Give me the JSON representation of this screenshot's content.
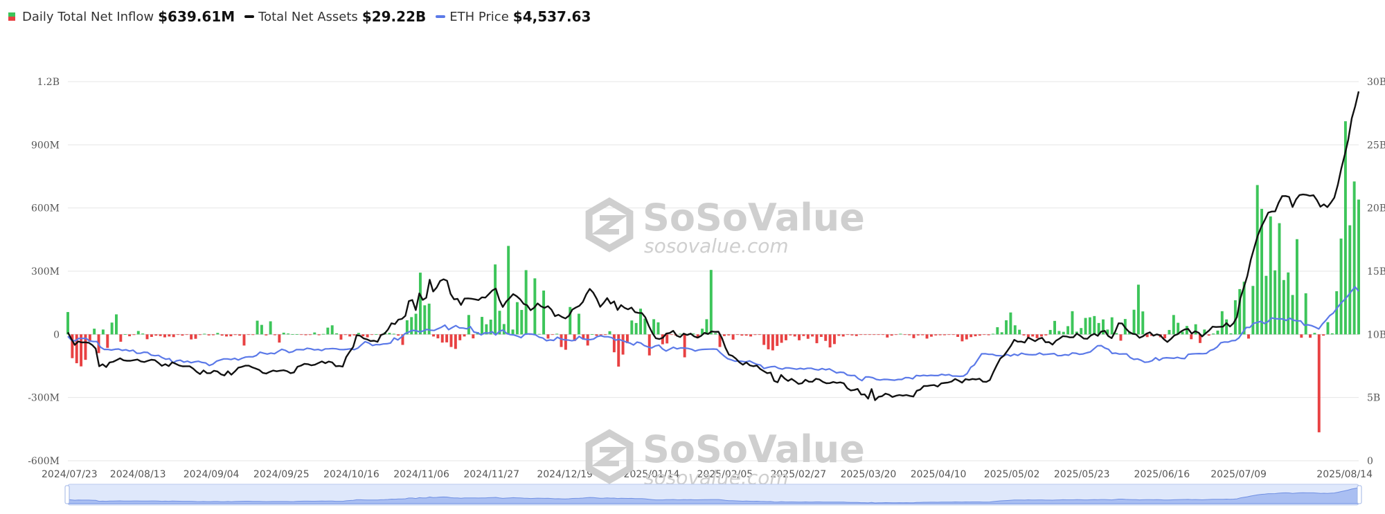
{
  "legend": {
    "inflow": {
      "label": "Daily Total Net Inflow",
      "value": "$639.61M",
      "color_pos": "#3dc55a",
      "color_neg": "#e84142"
    },
    "assets": {
      "label": "Total Net Assets",
      "value": "$29.22B",
      "color": "#111111"
    },
    "eth": {
      "label": "ETH Price",
      "value": "$4,537.63",
      "color": "#5b79e8"
    }
  },
  "watermark": {
    "brand": "SoSoValue",
    "site": "sosovalue.com"
  },
  "chart_data": {
    "type": "bar+line",
    "x_start": "2024/07/23",
    "x_end": "2025/08/14",
    "x_ticks": [
      "2024/07/23",
      "2024/08/13",
      "2024/09/04",
      "2024/09/25",
      "2024/10/16",
      "2024/11/06",
      "2024/11/27",
      "2024/12/19",
      "2025/01/14",
      "2025/02/05",
      "2025/02/27",
      "2025/03/20",
      "2025/04/10",
      "2025/05/02",
      "2025/05/23",
      "2025/06/16",
      "2025/07/09",
      "2025/08/14"
    ],
    "y_left_ticks": [
      "1.2B",
      "900M",
      "600M",
      "300M",
      "0",
      "-300M",
      "-600M"
    ],
    "y_left_range": [
      -600,
      1200
    ],
    "y_left_unit": "M",
    "y_right_ticks": [
      "30B",
      "25B",
      "20B",
      "15B",
      "10B",
      "5B",
      "0"
    ],
    "y_right_range": [
      0,
      30
    ],
    "y_right_unit": "B",
    "inflow_series": {
      "name": "Daily Total Net Inflow",
      "values": [
        106,
        -113,
        -137,
        -152,
        -121,
        -35,
        27,
        -89,
        23,
        -64,
        56,
        95,
        -35,
        1,
        -9,
        -3,
        16,
        4,
        -23,
        -12,
        -6,
        -8,
        -14,
        -10,
        -13,
        -2,
        -6,
        -2,
        -24,
        -21,
        -3,
        3,
        -5,
        -4,
        7,
        -6,
        -10,
        -9,
        -3,
        -6,
        -53,
        -1,
        -3,
        65,
        45,
        -5,
        62,
        -4,
        -39,
        8,
        4,
        1,
        1,
        -1,
        -4,
        -3,
        9,
        -4,
        2,
        32,
        43,
        5,
        -25,
        -3,
        -10,
        -5,
        7,
        -9,
        -14,
        -2,
        1,
        -5,
        10,
        7,
        3,
        -6,
        -50,
        67,
        82,
        98,
        293,
        138,
        146,
        -10,
        -19,
        -39,
        -38,
        -60,
        -69,
        -28,
        -10,
        92,
        -19,
        11,
        83,
        48,
        70,
        332,
        112,
        49,
        420,
        23,
        153,
        116,
        305,
        -2,
        266,
        2,
        208,
        -20,
        -1,
        3,
        -60,
        -73,
        130,
        -32,
        98,
        -24,
        -53,
        1,
        -7,
        -4,
        -3,
        15,
        -85,
        -153,
        -96,
        -42,
        66,
        54,
        122,
        75,
        -100,
        72,
        57,
        -47,
        -43,
        -1,
        -6,
        3,
        -109,
        4,
        4,
        -18,
        27,
        72,
        306,
        6,
        -60,
        -8,
        -5,
        -25,
        -2,
        -6,
        -6,
        -10,
        -3,
        -2,
        -50,
        -71,
        -76,
        -55,
        -40,
        -28,
        -5,
        -10,
        -28,
        -8,
        -21,
        -10,
        -42,
        -12,
        -31,
        -62,
        -46,
        -7,
        -10,
        -2,
        -5,
        -8,
        -2,
        -1,
        -1,
        -1,
        -2,
        -1,
        -15,
        -6,
        -2,
        3,
        -2,
        -4,
        -18,
        -5,
        -4,
        -20,
        -11,
        -5,
        -4,
        -4,
        -2,
        -1,
        -12,
        -33,
        -24,
        -13,
        -9,
        -6,
        -2,
        -4,
        3,
        34,
        10,
        67,
        104,
        43,
        22,
        -5,
        -14,
        -10,
        -18,
        -10,
        -5,
        21,
        64,
        16,
        12,
        39,
        110,
        13,
        30,
        78,
        81,
        87,
        54,
        71,
        23,
        81,
        6,
        -30,
        73,
        12,
        117,
        236,
        109,
        -13,
        -7,
        1,
        -14,
        -19,
        21,
        92,
        55,
        12,
        40,
        -23,
        48,
        -41,
        23,
        -6,
        4,
        18,
        110,
        71,
        5,
        162,
        215,
        250,
        -20,
        230,
        709,
        596,
        278,
        560,
        304,
        528,
        258,
        294,
        187,
        452,
        -16,
        195,
        -16,
        7,
        -465,
        -6,
        58,
        5,
        205,
        455,
        1012,
        518,
        726,
        640
      ]
    },
    "assets_series": {
      "name": "Total Net Assets",
      "values": [
        10.16,
        9.64,
        9.17,
        9.44,
        9.36,
        9.37,
        9.34,
        9.16,
        8.87,
        7.48,
        7.63,
        7.41,
        7.78,
        7.83,
        7.96,
        8.11,
        7.95,
        7.91,
        7.91,
        7.96,
        8.01,
        7.86,
        7.81,
        7.91,
        7.99,
        7.96,
        7.75,
        7.51,
        7.64,
        7.49,
        7.79,
        7.67,
        7.54,
        7.47,
        7.48,
        7.48,
        7.29,
        7.04,
        6.86,
        7.15,
        6.93,
        6.93,
        7.12,
        7.07,
        6.84,
        6.75,
        7.08,
        6.81,
        7.07,
        7.37,
        7.43,
        7.52,
        7.52,
        7.39,
        7.3,
        7.19,
        6.96,
        6.9,
        7.03,
        7.14,
        7.08,
        7.13,
        7.16,
        7.09,
        6.93,
        6.99,
        7.44,
        7.53,
        7.67,
        7.64,
        7.55,
        7.6,
        7.73,
        7.86,
        7.72,
        7.85,
        7.78,
        7.48,
        7.5,
        7.45,
        8.2,
        8.63,
        9.0,
        9.94,
        9.89,
        9.68,
        9.6,
        9.47,
        9.5,
        9.41,
        9.95,
        10.05,
        10.38,
        10.88,
        10.81,
        11.17,
        11.22,
        11.47,
        12.63,
        12.72,
        11.92,
        13.24,
        12.73,
        12.9,
        14.32,
        13.39,
        13.71,
        14.23,
        14.36,
        14.24,
        13.2,
        12.77,
        12.81,
        12.33,
        12.83,
        12.85,
        12.82,
        12.77,
        12.71,
        12.93,
        12.91,
        13.19,
        13.48,
        13.62,
        12.75,
        12.17,
        12.6,
        12.88,
        13.19,
        13.02,
        12.77,
        12.41,
        12.3,
        11.91,
        12.11,
        12.45,
        12.22,
        12.1,
        12.23,
        11.95,
        11.44,
        11.55,
        11.38,
        11.26,
        11.47,
        11.96,
        12.12,
        12.26,
        12.56,
        13.17,
        13.6,
        13.3,
        12.81,
        12.18,
        12.49,
        12.87,
        12.43,
        12.61,
        11.93,
        12.32,
        12.1,
        11.98,
        12.12,
        11.76,
        11.7,
        11.68,
        11.34,
        10.65,
        10.1,
        9.69,
        9.63,
        9.73,
        10.06,
        10.11,
        10.28,
        9.9,
        9.79,
        10.06,
        9.95,
        10.06,
        9.84,
        9.74,
        9.88,
        10.12,
        10.03,
        10.23,
        10.2,
        10.21,
        9.7,
        8.94,
        8.39,
        8.3,
        8.08,
        7.79,
        7.6,
        7.78,
        7.55,
        7.48,
        7.54,
        7.26,
        7.09,
        6.93,
        6.98,
        6.32,
        6.21,
        6.79,
        6.51,
        6.31,
        6.48,
        6.29,
        6.08,
        6.13,
        6.41,
        6.25,
        6.25,
        6.48,
        6.43,
        6.24,
        6.13,
        6.14,
        6.23,
        6.16,
        6.2,
        6.13,
        5.74,
        5.56,
        5.6,
        5.68,
        5.24,
        5.25,
        4.91,
        5.67,
        4.79,
        5.06,
        5.11,
        5.31,
        5.23,
        5.04,
        5.14,
        5.2,
        5.15,
        5.2,
        5.13,
        5.08,
        5.54,
        5.63,
        5.91,
        5.92,
        5.96,
        5.99,
        5.87,
        6.12,
        6.16,
        6.19,
        6.27,
        6.47,
        6.34,
        6.18,
        6.46,
        6.4,
        6.47,
        6.43,
        6.49,
        6.26,
        6.24,
        6.39,
        7.02,
        7.57,
        8.09,
        8.31,
        8.68,
        9.08,
        9.57,
        9.42,
        9.43,
        9.35,
        9.75,
        9.6,
        9.46,
        9.64,
        9.73,
        9.38,
        9.39,
        9.19,
        9.5,
        9.66,
        9.86,
        9.83,
        9.76,
        9.77,
        10.06,
        9.88,
        9.67,
        9.65,
        9.91,
        10.04,
        9.88,
        10.22,
        10.28,
        9.87,
        9.7,
        10.21,
        10.88,
        10.86,
        10.49,
        10.2,
        10.05,
        10.0,
        9.73,
        9.85,
        10.05,
        10.16,
        9.9,
        10.0,
        9.92,
        9.62,
        9.4,
        9.63,
        9.91,
        10.02,
        10.24,
        10.39,
        10.43,
        10.06,
        10.25,
        10.13,
        9.84,
        10.08,
        10.31,
        10.61,
        10.58,
        10.6,
        10.61,
        10.89,
        10.62,
        10.87,
        11.37,
        12.87,
        13.73,
        14.62,
        15.91,
        16.88,
        17.82,
        18.51,
        19.04,
        19.63,
        19.72,
        19.73,
        20.42,
        20.94,
        20.95,
        20.88,
        20.08,
        20.68,
        21.03,
        21.07,
        21.04,
        20.96,
        21.01,
        20.62,
        20.1,
        20.29,
        20.07,
        20.42,
        20.82,
        21.84,
        23.13,
        24.21,
        25.4,
        27.1,
        28.06,
        29.22
      ]
    },
    "eth_series": {
      "name": "ETH Price",
      "values": [
        9.85,
        9.54,
        9.48,
        9.68,
        9.68,
        9.69,
        9.47,
        9.44,
        9.43,
        8.99,
        8.81,
        8.81,
        8.76,
        8.82,
        8.84,
        8.73,
        8.78,
        8.68,
        8.75,
        8.51,
        8.5,
        8.59,
        8.57,
        8.36,
        8.31,
        8.34,
        8.16,
        8.03,
        8.08,
        7.76,
        7.91,
        7.96,
        7.8,
        7.88,
        7.76,
        7.83,
        7.87,
        7.78,
        7.74,
        7.54,
        7.64,
        7.88,
        7.97,
        8.06,
        8.06,
        8.01,
        8.1,
        7.97,
        8.1,
        8.2,
        8.23,
        8.22,
        8.33,
        8.59,
        8.51,
        8.44,
        8.52,
        8.47,
        8.65,
        8.82,
        8.73,
        8.56,
        8.63,
        8.79,
        8.79,
        8.78,
        8.9,
        8.86,
        8.77,
        8.81,
        8.72,
        8.85,
        8.86,
        8.88,
        8.86,
        8.8,
        8.79,
        8.82,
        8.86,
        8.79,
        8.92,
        9.18,
        9.42,
        9.32,
        9.12,
        9.19,
        9.18,
        9.24,
        9.26,
        9.32,
        9.71,
        9.56,
        9.79,
        10.06,
        10.18,
        10.32,
        10.29,
        10.2,
        10.27,
        10.39,
        10.33,
        10.31,
        10.44,
        10.56,
        10.73,
        10.37,
        10.54,
        10.69,
        10.51,
        10.5,
        10.44,
        10.61,
        10.18,
        10.12,
        9.96,
        10.12,
        10.1,
        10.21,
        9.95,
        10.24,
        10.34,
        10.08,
        9.98,
        9.95,
        9.86,
        9.74,
        10.0,
        10.04,
        10.02,
        9.96,
        9.78,
        9.71,
        9.5,
        9.56,
        9.52,
        9.77,
        9.63,
        9.57,
        9.55,
        9.49,
        9.56,
        9.84,
        9.64,
        9.6,
        9.58,
        9.63,
        9.82,
        9.89,
        9.81,
        9.81,
        9.74,
        9.54,
        9.61,
        9.49,
        9.4,
        9.31,
        9.16,
        9.39,
        9.32,
        9.11,
        9.01,
        8.93,
        9.08,
        9.15,
        8.85,
        8.68,
        8.83,
        8.98,
        8.85,
        8.93,
        8.92,
        8.89,
        8.82,
        8.68,
        8.77,
        8.81,
        8.82,
        8.83,
        8.84,
        8.82,
        8.53,
        8.29,
        8.07,
        7.98,
        7.88,
        7.89,
        7.86,
        7.82,
        7.9,
        7.75,
        7.63,
        7.57,
        7.3,
        7.38,
        7.44,
        7.46,
        7.32,
        7.25,
        7.35,
        7.34,
        7.29,
        7.24,
        7.31,
        7.25,
        7.32,
        7.32,
        7.23,
        7.18,
        7.29,
        7.2,
        7.27,
        7.11,
        6.95,
        7.01,
        6.98,
        6.78,
        6.74,
        6.75,
        6.5,
        6.34,
        6.63,
        6.63,
        6.57,
        6.43,
        6.39,
        6.44,
        6.43,
        6.4,
        6.37,
        6.43,
        6.43,
        6.58,
        6.57,
        6.48,
        6.75,
        6.71,
        6.76,
        6.72,
        6.76,
        6.74,
        6.74,
        6.84,
        6.77,
        6.82,
        6.7,
        6.7,
        6.68,
        6.7,
        6.89,
        7.39,
        7.58,
        8.02,
        8.46,
        8.47,
        8.42,
        8.42,
        8.32,
        8.31,
        8.29,
        8.41,
        8.29,
        8.43,
        8.33,
        8.51,
        8.43,
        8.4,
        8.38,
        8.4,
        8.53,
        8.4,
        8.42,
        8.45,
        8.48,
        8.31,
        8.32,
        8.39,
        8.35,
        8.53,
        8.51,
        8.42,
        8.45,
        8.54,
        8.61,
        8.86,
        9.1,
        9.11,
        8.92,
        8.82,
        8.49,
        8.52,
        8.44,
        8.45,
        8.45,
        8.16,
        8.02,
        8.06,
        7.95,
        7.79,
        7.82,
        7.91,
        8.15,
        7.95,
        8.12,
        8.15,
        8.13,
        8.11,
        8.18,
        8.1,
        8.08,
        8.42,
        8.45,
        8.47,
        8.48,
        8.47,
        8.49,
        8.72,
        8.82,
        9.01,
        9.34,
        9.4,
        9.39,
        9.5,
        9.52,
        9.73,
        10.15,
        10.55,
        10.55,
        10.88,
        10.94,
        11.03,
        10.86,
        11.01,
        11.3,
        11.24,
        11.22,
        11.22,
        11.1,
        11.28,
        11.12,
        11.07,
        11.07,
        10.72,
        10.76,
        10.69,
        10.57,
        10.43,
        10.82,
        11.13,
        11.48,
        11.68,
        12.07,
        12.44,
        12.72,
        13.04,
        13.41,
        13.76,
        13.41
      ]
    }
  }
}
